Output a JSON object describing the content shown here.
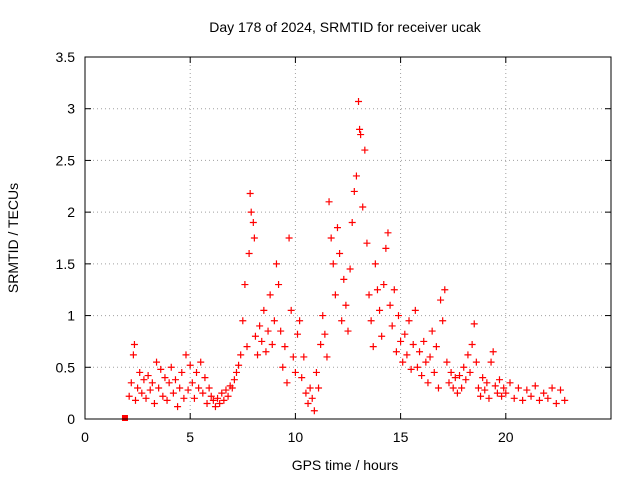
{
  "chart_data": {
    "type": "scatter",
    "title": "Day 178 of 2024, SRMTID for receiver ucak",
    "xlabel": "GPS time / hours",
    "ylabel": "SRMTID / TECUs",
    "xlim": [
      0,
      25
    ],
    "ylim": [
      0,
      3.5
    ],
    "x_ticks": [
      0,
      5,
      10,
      15,
      20
    ],
    "x_tick_labels": [
      "0",
      "5",
      "10",
      "15",
      "20"
    ],
    "y_ticks": [
      0,
      0.5,
      1,
      1.5,
      2,
      2.5,
      3,
      3.5
    ],
    "y_tick_labels": [
      "0",
      "0.5",
      "1",
      "1.5",
      "2",
      "2.5",
      "3",
      "3.5"
    ],
    "grid": true,
    "marker": "plus",
    "series_color": "#ff0000",
    "start_marker": {
      "x": 1.9,
      "y": 0.0
    },
    "series": [
      {
        "name": "SRMTID",
        "points": [
          [
            2.1,
            0.22
          ],
          [
            2.2,
            0.35
          ],
          [
            2.3,
            0.62
          ],
          [
            2.35,
            0.72
          ],
          [
            2.4,
            0.18
          ],
          [
            2.5,
            0.3
          ],
          [
            2.6,
            0.45
          ],
          [
            2.7,
            0.25
          ],
          [
            2.8,
            0.38
          ],
          [
            2.9,
            0.2
          ],
          [
            3.0,
            0.42
          ],
          [
            3.1,
            0.28
          ],
          [
            3.2,
            0.35
          ],
          [
            3.3,
            0.15
          ],
          [
            3.4,
            0.55
          ],
          [
            3.5,
            0.3
          ],
          [
            3.6,
            0.48
          ],
          [
            3.7,
            0.22
          ],
          [
            3.8,
            0.4
          ],
          [
            3.9,
            0.18
          ],
          [
            4.0,
            0.35
          ],
          [
            4.1,
            0.5
          ],
          [
            4.2,
            0.25
          ],
          [
            4.3,
            0.38
          ],
          [
            4.4,
            0.12
          ],
          [
            4.5,
            0.3
          ],
          [
            4.6,
            0.45
          ],
          [
            4.7,
            0.2
          ],
          [
            4.8,
            0.62
          ],
          [
            4.9,
            0.28
          ],
          [
            5.0,
            0.52
          ],
          [
            5.1,
            0.35
          ],
          [
            5.2,
            0.2
          ],
          [
            5.3,
            0.45
          ],
          [
            5.4,
            0.3
          ],
          [
            5.5,
            0.55
          ],
          [
            5.6,
            0.25
          ],
          [
            5.7,
            0.4
          ],
          [
            5.8,
            0.15
          ],
          [
            5.9,
            0.3
          ],
          [
            6.0,
            0.22
          ],
          [
            6.1,
            0.18
          ],
          [
            6.2,
            0.12
          ],
          [
            6.3,
            0.2
          ],
          [
            6.4,
            0.15
          ],
          [
            6.5,
            0.25
          ],
          [
            6.6,
            0.18
          ],
          [
            6.7,
            0.28
          ],
          [
            6.8,
            0.22
          ],
          [
            6.9,
            0.32
          ],
          [
            7.0,
            0.3
          ],
          [
            7.1,
            0.38
          ],
          [
            7.2,
            0.45
          ],
          [
            7.3,
            0.52
          ],
          [
            7.4,
            0.62
          ],
          [
            7.5,
            0.95
          ],
          [
            7.6,
            1.3
          ],
          [
            7.7,
            0.7
          ],
          [
            7.8,
            1.6
          ],
          [
            7.85,
            2.18
          ],
          [
            7.9,
            2.0
          ],
          [
            8.0,
            1.9
          ],
          [
            8.05,
            1.75
          ],
          [
            8.1,
            0.8
          ],
          [
            8.2,
            0.62
          ],
          [
            8.3,
            0.9
          ],
          [
            8.4,
            0.75
          ],
          [
            8.5,
            1.05
          ],
          [
            8.6,
            0.65
          ],
          [
            8.7,
            0.85
          ],
          [
            8.8,
            1.2
          ],
          [
            8.9,
            0.72
          ],
          [
            9.0,
            0.95
          ],
          [
            9.1,
            1.5
          ],
          [
            9.2,
            1.3
          ],
          [
            9.3,
            0.85
          ],
          [
            9.4,
            0.5
          ],
          [
            9.5,
            0.7
          ],
          [
            9.6,
            0.35
          ],
          [
            9.7,
            1.75
          ],
          [
            9.8,
            1.05
          ],
          [
            9.9,
            0.6
          ],
          [
            10.0,
            0.45
          ],
          [
            10.1,
            0.82
          ],
          [
            10.2,
            0.95
          ],
          [
            10.3,
            0.4
          ],
          [
            10.4,
            0.6
          ],
          [
            10.5,
            0.25
          ],
          [
            10.6,
            0.15
          ],
          [
            10.7,
            0.3
          ],
          [
            10.8,
            0.2
          ],
          [
            10.9,
            0.08
          ],
          [
            11.0,
            0.45
          ],
          [
            11.1,
            0.3
          ],
          [
            11.2,
            0.72
          ],
          [
            11.3,
            1.0
          ],
          [
            11.4,
            0.82
          ],
          [
            11.5,
            0.6
          ],
          [
            11.6,
            2.1
          ],
          [
            11.7,
            1.75
          ],
          [
            11.8,
            1.5
          ],
          [
            11.9,
            1.2
          ],
          [
            12.0,
            1.85
          ],
          [
            12.1,
            1.6
          ],
          [
            12.2,
            0.95
          ],
          [
            12.3,
            1.35
          ],
          [
            12.4,
            1.1
          ],
          [
            12.5,
            0.85
          ],
          [
            12.6,
            1.45
          ],
          [
            12.7,
            1.9
          ],
          [
            12.8,
            2.2
          ],
          [
            12.9,
            2.35
          ],
          [
            13.0,
            3.07
          ],
          [
            13.05,
            2.8
          ],
          [
            13.1,
            2.75
          ],
          [
            13.2,
            2.05
          ],
          [
            13.3,
            2.6
          ],
          [
            13.4,
            1.7
          ],
          [
            13.5,
            1.2
          ],
          [
            13.6,
            0.95
          ],
          [
            13.7,
            0.7
          ],
          [
            13.8,
            1.5
          ],
          [
            13.9,
            1.25
          ],
          [
            14.0,
            1.05
          ],
          [
            14.1,
            0.8
          ],
          [
            14.2,
            1.3
          ],
          [
            14.3,
            1.65
          ],
          [
            14.4,
            1.8
          ],
          [
            14.5,
            1.1
          ],
          [
            14.6,
            0.9
          ],
          [
            14.7,
            1.25
          ],
          [
            14.8,
            0.65
          ],
          [
            14.9,
            1.0
          ],
          [
            15.0,
            0.75
          ],
          [
            15.1,
            0.55
          ],
          [
            15.2,
            0.82
          ],
          [
            15.3,
            0.62
          ],
          [
            15.4,
            0.95
          ],
          [
            15.5,
            0.48
          ],
          [
            15.6,
            0.72
          ],
          [
            15.7,
            1.05
          ],
          [
            15.8,
            0.5
          ],
          [
            15.9,
            0.65
          ],
          [
            16.0,
            0.42
          ],
          [
            16.1,
            0.75
          ],
          [
            16.2,
            0.55
          ],
          [
            16.3,
            0.35
          ],
          [
            16.4,
            0.6
          ],
          [
            16.5,
            0.85
          ],
          [
            16.6,
            0.45
          ],
          [
            16.7,
            0.7
          ],
          [
            16.8,
            0.3
          ],
          [
            16.9,
            1.15
          ],
          [
            17.0,
            0.95
          ],
          [
            17.1,
            1.25
          ],
          [
            17.2,
            0.55
          ],
          [
            17.3,
            0.35
          ],
          [
            17.4,
            0.45
          ],
          [
            17.5,
            0.3
          ],
          [
            17.6,
            0.4
          ],
          [
            17.7,
            0.25
          ],
          [
            17.8,
            0.42
          ],
          [
            17.9,
            0.3
          ],
          [
            18.0,
            0.5
          ],
          [
            18.1,
            0.38
          ],
          [
            18.2,
            0.62
          ],
          [
            18.3,
            0.45
          ],
          [
            18.4,
            0.72
          ],
          [
            18.5,
            0.92
          ],
          [
            18.6,
            0.55
          ],
          [
            18.7,
            0.3
          ],
          [
            18.8,
            0.22
          ],
          [
            18.9,
            0.4
          ],
          [
            19.0,
            0.28
          ],
          [
            19.1,
            0.35
          ],
          [
            19.2,
            0.2
          ],
          [
            19.3,
            0.55
          ],
          [
            19.4,
            0.65
          ],
          [
            19.5,
            0.32
          ],
          [
            19.6,
            0.25
          ],
          [
            19.7,
            0.38
          ],
          [
            19.8,
            0.22
          ],
          [
            19.9,
            0.3
          ],
          [
            20.0,
            0.25
          ],
          [
            20.2,
            0.35
          ],
          [
            20.4,
            0.2
          ],
          [
            20.6,
            0.3
          ],
          [
            20.8,
            0.18
          ],
          [
            21.0,
            0.28
          ],
          [
            21.2,
            0.22
          ],
          [
            21.4,
            0.32
          ],
          [
            21.6,
            0.18
          ],
          [
            21.8,
            0.25
          ],
          [
            22.0,
            0.2
          ],
          [
            22.2,
            0.3
          ],
          [
            22.4,
            0.15
          ],
          [
            22.6,
            0.28
          ],
          [
            22.8,
            0.18
          ]
        ]
      }
    ]
  }
}
